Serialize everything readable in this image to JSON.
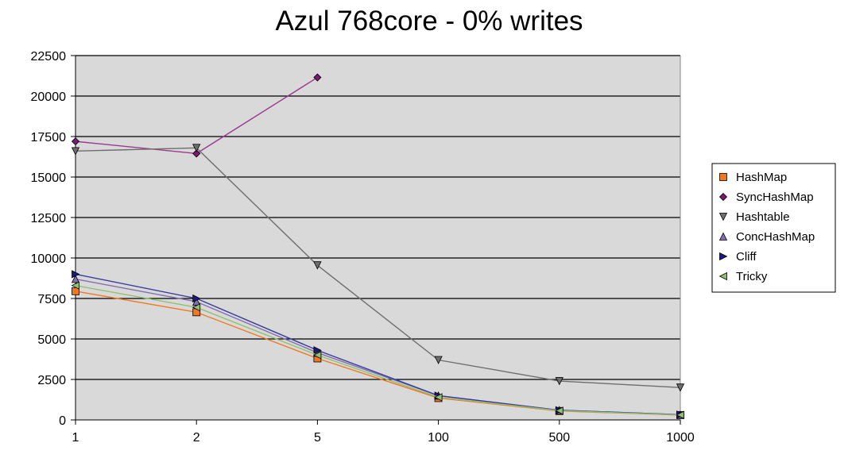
{
  "chart_data": {
    "type": "line",
    "title": "Azul 768core - 0% writes",
    "xlabel": "",
    "ylabel": "",
    "categories": [
      "1",
      "2",
      "5",
      "100",
      "500",
      "1000"
    ],
    "ylim": [
      0,
      22500
    ],
    "yticks": [
      0,
      2500,
      5000,
      7500,
      10000,
      12500,
      15000,
      17500,
      20000,
      22500
    ],
    "grid": true,
    "legend_position": "right",
    "plot_background": "#d9d9d9",
    "series": [
      {
        "name": "HashMap",
        "marker": "square",
        "color": "#f07820",
        "line_color": "#f07820",
        "values": [
          7950,
          6650,
          3800,
          1350,
          550,
          300
        ]
      },
      {
        "name": "SyncHashMap",
        "marker": "diamond",
        "color": "#7a1a6e",
        "line_color": "#9a3a8e",
        "values": [
          17200,
          16450,
          21150,
          null,
          null,
          null
        ]
      },
      {
        "name": "Hashtable",
        "marker": "triangle-down",
        "color": "#6e6e6e",
        "line_color": "#6e6e6e",
        "values": [
          16600,
          16800,
          9550,
          3700,
          2400,
          2000
        ]
      },
      {
        "name": "ConcHashMap",
        "marker": "triangle-up",
        "color": "#8070b0",
        "line_color": "#8070b0",
        "values": [
          8700,
          7300,
          4150,
          1500,
          600,
          320
        ]
      },
      {
        "name": "Cliff",
        "marker": "triangle-right",
        "color": "#1a1a80",
        "line_color": "#3a3a9a",
        "values": [
          9000,
          7500,
          4300,
          1500,
          600,
          330
        ]
      },
      {
        "name": "Tricky",
        "marker": "triangle-left",
        "color": "#90c070",
        "line_color": "#90c070",
        "values": [
          8300,
          6950,
          4000,
          1400,
          570,
          310
        ]
      }
    ]
  }
}
